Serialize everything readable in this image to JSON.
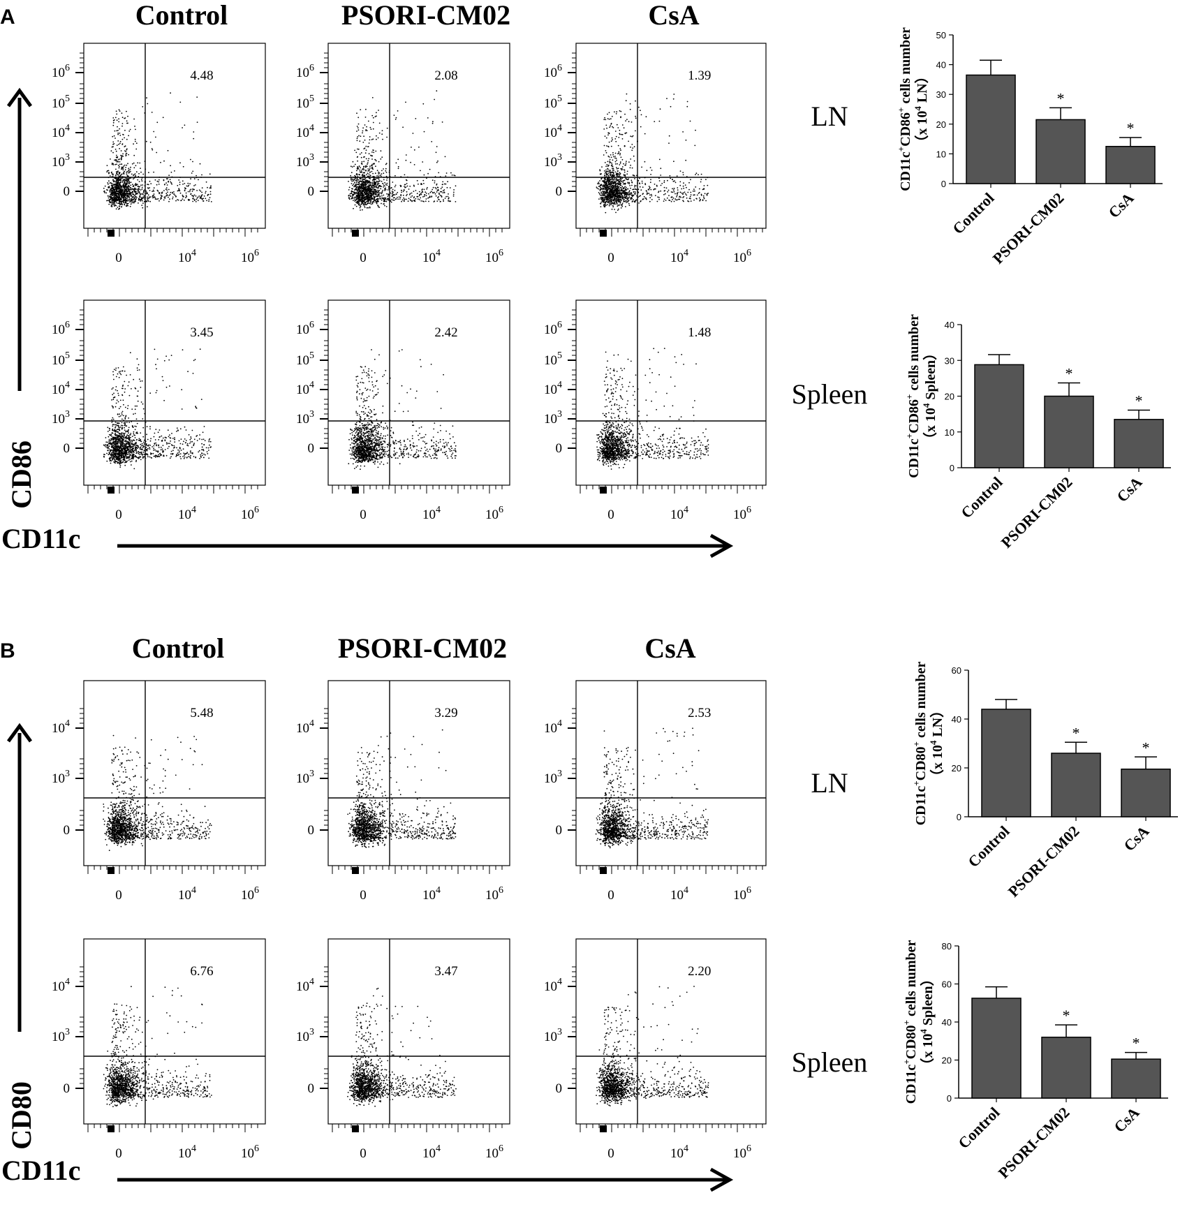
{
  "colors": {
    "ink": "#000000",
    "bar_fill": "#555555",
    "dot": "#000000",
    "bg": "#ffffff"
  },
  "panels": [
    {
      "letter": "A",
      "marker": "CD86",
      "columns": [
        "Control",
        "PSORI-CM02",
        "CsA"
      ],
      "rows": [
        {
          "tissue": "LN",
          "percentages": [
            "4.48",
            "2.08",
            "1.39"
          ]
        },
        {
          "tissue": "Spleen",
          "percentages": [
            "3.45",
            "2.42",
            "1.48"
          ]
        }
      ],
      "x_axis_label": "CD11c",
      "y_axis_label": "CD86",
      "fc_y_ticks": [
        {
          "base": "10",
          "exp": "6"
        },
        {
          "base": "10",
          "exp": "5"
        },
        {
          "base": "10",
          "exp": "4"
        },
        {
          "base": "10",
          "exp": "3"
        },
        {
          "base": "0",
          "exp": ""
        }
      ],
      "fc_x_ticks": [
        {
          "base": "0",
          "exp": ""
        },
        {
          "base": "10",
          "exp": "4"
        },
        {
          "base": "10",
          "exp": "6"
        }
      ]
    },
    {
      "letter": "B",
      "marker": "CD80",
      "columns": [
        "Control",
        "PSORI-CM02",
        "CsA"
      ],
      "rows": [
        {
          "tissue": "LN",
          "percentages": [
            "5.48",
            "3.29",
            "2.53"
          ]
        },
        {
          "tissue": "Spleen",
          "percentages": [
            "6.76",
            "3.47",
            "2.20"
          ]
        }
      ],
      "x_axis_label": "CD11c",
      "y_axis_label": "CD80",
      "fc_y_ticks": [
        {
          "base": "10",
          "exp": "4"
        },
        {
          "base": "10",
          "exp": "3"
        },
        {
          "base": "0",
          "exp": ""
        }
      ],
      "fc_x_ticks": [
        {
          "base": "0",
          "exp": ""
        },
        {
          "base": "10",
          "exp": "4"
        },
        {
          "base": "10",
          "exp": "6"
        }
      ]
    }
  ],
  "chart_data": [
    {
      "type": "bar",
      "panel": "A",
      "tissue": "LN",
      "categories": [
        "Control",
        "PSORI-CM02",
        "CsA"
      ],
      "values": [
        36.5,
        21.5,
        12.5
      ],
      "errors": [
        5,
        4,
        3
      ],
      "significance": [
        "",
        "*",
        "*"
      ],
      "ylim": [
        0,
        50
      ],
      "yticks": [
        0,
        10,
        20,
        30,
        40,
        50
      ],
      "ylabel": {
        "line1": [
          {
            "t": "CD11c"
          },
          {
            "t": "+",
            "sup": true
          },
          {
            "t": "CD86"
          },
          {
            "t": "+",
            "sup": true
          },
          {
            "t": " cells number"
          }
        ],
        "line2": [
          {
            "t": "（x 10"
          },
          {
            "t": "4",
            "sup": true
          },
          {
            "t": " LN）"
          }
        ]
      }
    },
    {
      "type": "bar",
      "panel": "A",
      "tissue": "Spleen",
      "categories": [
        "Control",
        "PSORI-CM02",
        "CsA"
      ],
      "values": [
        28.8,
        20,
        13.5
      ],
      "errors": [
        2.8,
        3.7,
        2.6
      ],
      "significance": [
        "",
        "*",
        "*"
      ],
      "ylim": [
        0,
        40
      ],
      "yticks": [
        0,
        10,
        20,
        30,
        40
      ],
      "ylabel": {
        "line1": [
          {
            "t": "CD11c"
          },
          {
            "t": "+",
            "sup": true
          },
          {
            "t": "CD86"
          },
          {
            "t": "+",
            "sup": true
          },
          {
            "t": " cells number"
          }
        ],
        "line2": [
          {
            "t": "（x 10"
          },
          {
            "t": "4",
            "sup": true
          },
          {
            "t": " Spleen）"
          }
        ]
      }
    },
    {
      "type": "bar",
      "panel": "B",
      "tissue": "LN",
      "categories": [
        "Control",
        "PSORI-CM02",
        "CsA"
      ],
      "values": [
        44,
        26,
        19.5
      ],
      "errors": [
        4,
        4.5,
        5
      ],
      "significance": [
        "",
        "*",
        "*"
      ],
      "ylim": [
        0,
        60
      ],
      "yticks": [
        0,
        20,
        40,
        60
      ],
      "ylabel": {
        "line1": [
          {
            "t": "CD11c"
          },
          {
            "t": "+",
            "sup": true
          },
          {
            "t": "CD80"
          },
          {
            "t": "+",
            "sup": true
          },
          {
            "t": " cells number"
          }
        ],
        "line2": [
          {
            "t": "（x 10"
          },
          {
            "t": "4",
            "sup": true
          },
          {
            "t": " LN）"
          }
        ]
      }
    },
    {
      "type": "bar",
      "panel": "B",
      "tissue": "Spleen",
      "categories": [
        "Control",
        "PSORI-CM02",
        "CsA"
      ],
      "values": [
        52.5,
        32,
        20.5
      ],
      "errors": [
        6,
        6.5,
        3.5
      ],
      "significance": [
        "",
        "*",
        "*"
      ],
      "ylim": [
        0,
        80
      ],
      "yticks": [
        0,
        20,
        40,
        60,
        80
      ],
      "ylabel": {
        "line1": [
          {
            "t": "CD11c"
          },
          {
            "t": "+",
            "sup": true
          },
          {
            "t": "CD80"
          },
          {
            "t": "+",
            "sup": true
          },
          {
            "t": " cells number"
          }
        ],
        "line2": [
          {
            "t": "（x 10"
          },
          {
            "t": "4",
            "sup": true
          },
          {
            "t": " Spleen）"
          }
        ]
      }
    }
  ]
}
